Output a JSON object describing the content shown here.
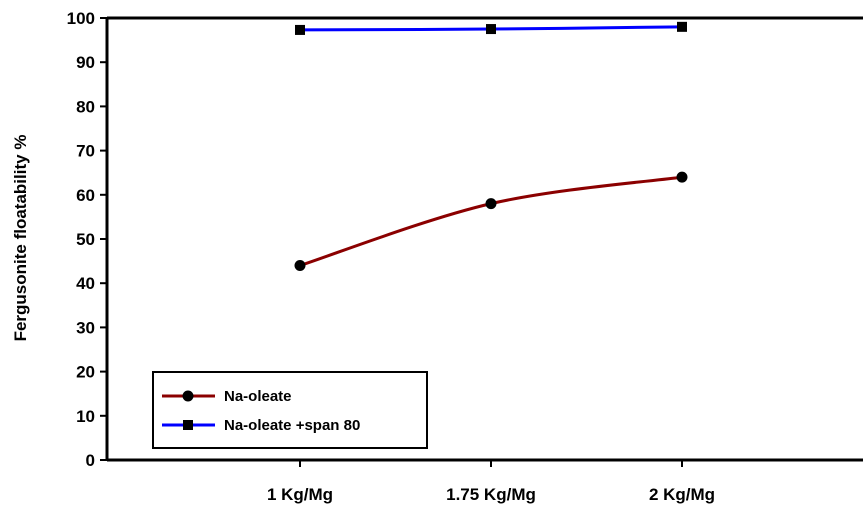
{
  "chart_data": {
    "type": "line",
    "title": "",
    "xlabel": "",
    "ylabel": "Fergusonite floatability %",
    "categories": [
      "1 Kg/Mg",
      "1.75  Kg/Mg",
      "2 Kg/Mg"
    ],
    "ylim": [
      0,
      100
    ],
    "yticks": [
      "0",
      "10",
      "20",
      "30",
      "40",
      "50",
      "60",
      "70",
      "80",
      "90",
      "100"
    ],
    "grid": false,
    "legend_position": "bottom-left",
    "series": [
      {
        "name": "Na-oleate",
        "values": [
          44,
          58,
          64
        ],
        "color": "#8b0000",
        "marker": "circle"
      },
      {
        "name": "Na-oleate +span 80",
        "values": [
          97.3,
          97.5,
          98
        ],
        "color": "#0000ff",
        "marker": "square"
      }
    ]
  }
}
